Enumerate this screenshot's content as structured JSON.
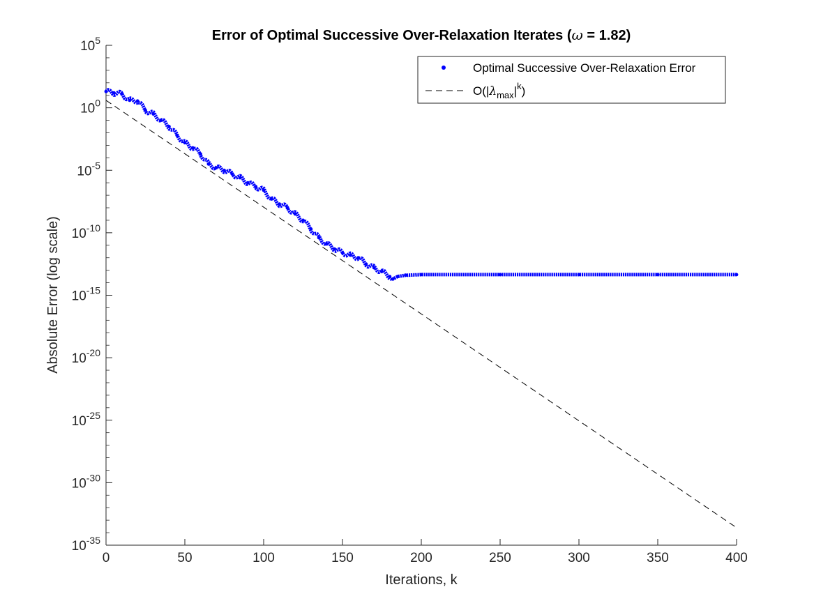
{
  "chart_data": {
    "type": "scatter",
    "title": "Error of Optimal Successive Over-Relaxation Iterates (ω = 1.82)",
    "xlabel": "Iterations, k",
    "ylabel": "Absolute Error (log scale)",
    "xlim": [
      0,
      400
    ],
    "ylim_exponent": [
      -35,
      5
    ],
    "y_scale": "log",
    "x_ticks": [
      "0",
      "50",
      "100",
      "150",
      "200",
      "250",
      "300",
      "350",
      "400"
    ],
    "y_tick_base": "10",
    "y_tick_exponents": [
      "5",
      "0",
      "-5",
      "-10",
      "-15",
      "-20",
      "-25",
      "-30",
      "-35"
    ],
    "legend_position": "top-right",
    "series": [
      {
        "name": "Optimal Successive Over-Relaxation Error",
        "style": "dots",
        "color": "#0000ff",
        "log10_points": [
          [
            0,
            1.3
          ],
          [
            5,
            1.2
          ],
          [
            10,
            1.1
          ],
          [
            15,
            0.6
          ],
          [
            20,
            0.55
          ],
          [
            25,
            -0.2
          ],
          [
            30,
            -0.5
          ],
          [
            35,
            -1.0
          ],
          [
            40,
            -1.5
          ],
          [
            45,
            -2.2
          ],
          [
            50,
            -2.8
          ],
          [
            55,
            -3.2
          ],
          [
            60,
            -3.7
          ],
          [
            65,
            -4.5
          ],
          [
            70,
            -4.8
          ],
          [
            75,
            -5.0
          ],
          [
            80,
            -5.3
          ],
          [
            85,
            -5.6
          ],
          [
            90,
            -6.0
          ],
          [
            95,
            -6.3
          ],
          [
            100,
            -6.6
          ],
          [
            105,
            -7.3
          ],
          [
            110,
            -7.7
          ],
          [
            115,
            -8.0
          ],
          [
            120,
            -8.5
          ],
          [
            125,
            -9.0
          ],
          [
            130,
            -9.7
          ],
          [
            135,
            -10.4
          ],
          [
            140,
            -10.9
          ],
          [
            145,
            -11.3
          ],
          [
            150,
            -11.6
          ],
          [
            155,
            -11.8
          ],
          [
            160,
            -12.0
          ],
          [
            165,
            -12.5
          ],
          [
            170,
            -12.8
          ],
          [
            175,
            -13.1
          ],
          [
            180,
            -13.5
          ],
          [
            182,
            -13.7
          ],
          [
            185,
            -13.5
          ],
          [
            190,
            -13.4
          ],
          [
            200,
            -13.35
          ],
          [
            250,
            -13.35
          ],
          [
            300,
            -13.35
          ],
          [
            350,
            -13.35
          ],
          [
            400,
            -13.35
          ]
        ]
      },
      {
        "name": "O(|λmax|k)",
        "style": "dashed",
        "color": "#000000",
        "log10_points": [
          [
            0,
            0.6
          ],
          [
            400,
            -33.6
          ]
        ]
      }
    ]
  },
  "legend": {
    "entry1": "Optimal Successive Over-Relaxation Error",
    "entry2_prefix": "O(|",
    "entry2_lambda": "λ",
    "entry2_sub": "max",
    "entry2_mid": "|",
    "entry2_sup": "k",
    "entry2_suffix": ")"
  },
  "title_parts": {
    "before": "Error of Optimal Successive Over-Relaxation Iterates (",
    "omega": "ω",
    "after": " = 1.82)"
  }
}
